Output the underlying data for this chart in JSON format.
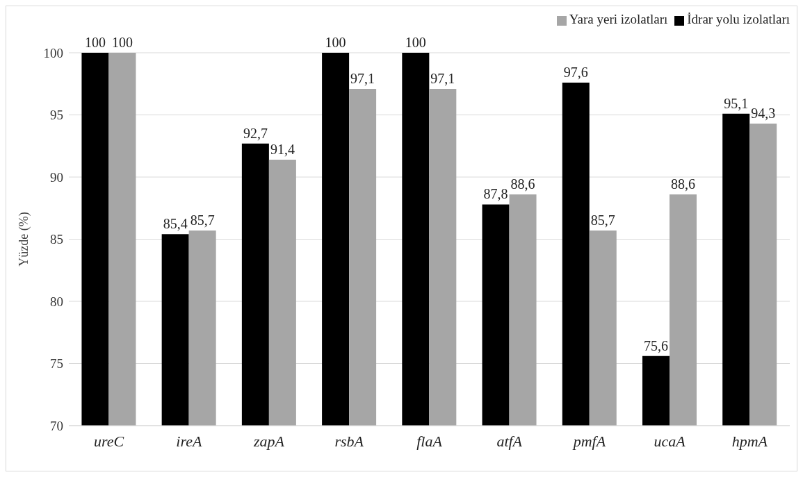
{
  "chart_data": {
    "type": "bar",
    "ylabel": "Yüzde (%)",
    "categories": [
      "ureC",
      "ireA",
      "zapA",
      "rsbA",
      "flaA",
      "atfA",
      "pmfA",
      "ucaA",
      "hpmA"
    ],
    "series": [
      {
        "name": "İdrar yolu izolatları",
        "color": "#000000",
        "values": [
          100,
          85.4,
          92.7,
          100,
          100,
          87.8,
          97.6,
          75.6,
          95.1
        ],
        "value_labels": [
          "100",
          "85,4",
          "92,7",
          "100",
          "100",
          "87,8",
          "97,6",
          "75,6",
          "95,1"
        ]
      },
      {
        "name": "Yara yeri izolatları",
        "color": "#a6a6a6",
        "values": [
          100,
          85.7,
          91.4,
          97.1,
          97.1,
          88.6,
          85.7,
          88.6,
          94.3
        ],
        "value_labels": [
          "100",
          "85,7",
          "91,4",
          "97,1",
          "97,1",
          "88,6",
          "85,7",
          "88,6",
          "94,3"
        ]
      }
    ],
    "ylim": [
      70,
      100
    ],
    "yticks": [
      70,
      75,
      80,
      85,
      90,
      95,
      100
    ],
    "grid": "y",
    "legend": "top right"
  }
}
